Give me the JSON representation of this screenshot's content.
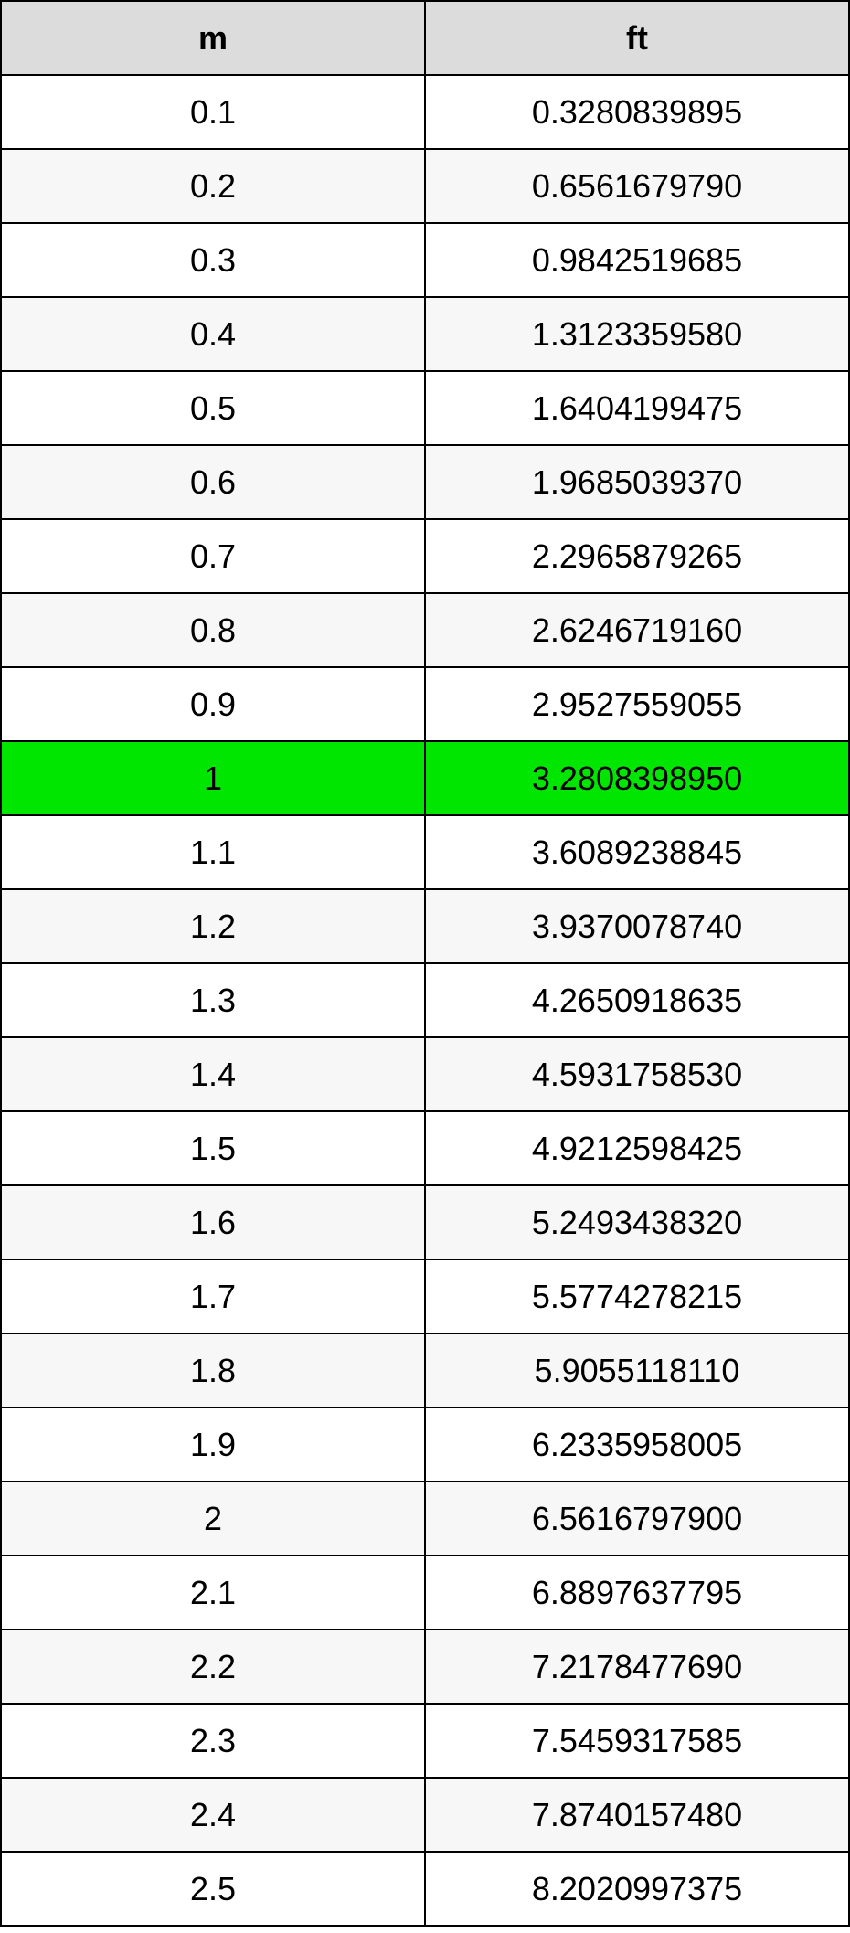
{
  "table": {
    "border_color": "#000000",
    "header_bg": "#dcdcdc",
    "header_text_color": "#000000",
    "row_bg_odd": "#ffffff",
    "row_bg_even": "#f7f7f7",
    "highlight_bg": "#00e600",
    "highlight_text_color": "#000000",
    "cell_text_color": "#000000",
    "columns": [
      "m",
      "ft"
    ],
    "highlight_index": 9,
    "rows": [
      [
        "0.1",
        "0.3280839895"
      ],
      [
        "0.2",
        "0.6561679790"
      ],
      [
        "0.3",
        "0.9842519685"
      ],
      [
        "0.4",
        "1.3123359580"
      ],
      [
        "0.5",
        "1.6404199475"
      ],
      [
        "0.6",
        "1.9685039370"
      ],
      [
        "0.7",
        "2.2965879265"
      ],
      [
        "0.8",
        "2.6246719160"
      ],
      [
        "0.9",
        "2.9527559055"
      ],
      [
        "1",
        "3.2808398950"
      ],
      [
        "1.1",
        "3.6089238845"
      ],
      [
        "1.2",
        "3.9370078740"
      ],
      [
        "1.3",
        "4.2650918635"
      ],
      [
        "1.4",
        "4.5931758530"
      ],
      [
        "1.5",
        "4.9212598425"
      ],
      [
        "1.6",
        "5.2493438320"
      ],
      [
        "1.7",
        "5.5774278215"
      ],
      [
        "1.8",
        "5.9055118110"
      ],
      [
        "1.9",
        "6.2335958005"
      ],
      [
        "2",
        "6.5616797900"
      ],
      [
        "2.1",
        "6.8897637795"
      ],
      [
        "2.2",
        "7.2178477690"
      ],
      [
        "2.3",
        "7.5459317585"
      ],
      [
        "2.4",
        "7.8740157480"
      ],
      [
        "2.5",
        "8.2020997375"
      ]
    ]
  }
}
